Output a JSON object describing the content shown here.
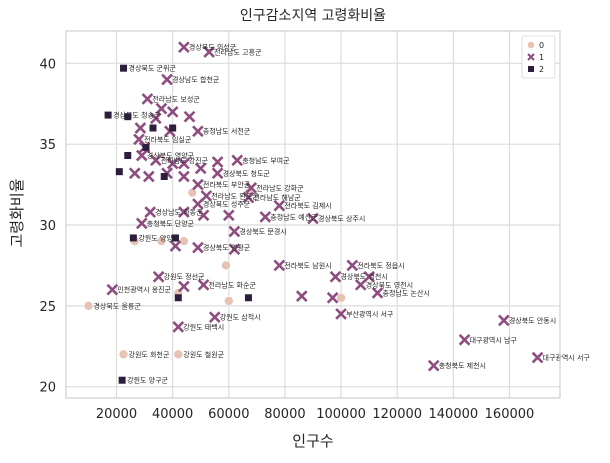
{
  "chart_data": {
    "type": "scatter",
    "title": "인구감소지역 고령화비율",
    "xlabel": "인구수",
    "ylabel": "고령화비율",
    "xlim": [
      2000,
      178000
    ],
    "ylim": [
      19.3,
      42
    ],
    "xticks": [
      20000,
      40000,
      60000,
      80000,
      100000,
      120000,
      140000,
      160000
    ],
    "yticks": [
      20,
      25,
      30,
      35,
      40
    ],
    "grid": true,
    "legend": {
      "position": "top-right",
      "title": "",
      "entries": [
        "0",
        "1",
        "2"
      ]
    },
    "series": [
      {
        "name": "0",
        "marker": "circle",
        "color": "#e6c3b3",
        "points": [
          {
            "x": 10000,
            "y": 25.0,
            "label": "경상북도 울릉군"
          },
          {
            "x": 22500,
            "y": 22.0,
            "label": "강원도 화천군"
          },
          {
            "x": 42000,
            "y": 22.0,
            "label": "강원도 철원군"
          },
          {
            "x": 26500,
            "y": 29.0,
            "label": ""
          },
          {
            "x": 36000,
            "y": 29.0,
            "label": ""
          },
          {
            "x": 44000,
            "y": 29.0,
            "label": ""
          },
          {
            "x": 59000,
            "y": 27.5,
            "label": ""
          },
          {
            "x": 42000,
            "y": 25.8,
            "label": ""
          },
          {
            "x": 47000,
            "y": 32.0,
            "label": ""
          },
          {
            "x": 67000,
            "y": 32.0,
            "label": ""
          },
          {
            "x": 60000,
            "y": 25.3,
            "label": ""
          },
          {
            "x": 100000,
            "y": 25.5,
            "label": ""
          }
        ]
      },
      {
        "name": "1",
        "marker": "x",
        "color": "#8e4d7f",
        "points": [
          {
            "x": 44000,
            "y": 41.0,
            "label": "경상북도 의성군"
          },
          {
            "x": 53000,
            "y": 40.7,
            "label": "전라남도 고흥군"
          },
          {
            "x": 38000,
            "y": 39.0,
            "label": "경상남도 합천군"
          },
          {
            "x": 31000,
            "y": 37.8,
            "label": "전라남도 보성군"
          },
          {
            "x": 36000,
            "y": 37.2,
            "label": ""
          },
          {
            "x": 40000,
            "y": 37.0,
            "label": ""
          },
          {
            "x": 34000,
            "y": 36.6,
            "label": ""
          },
          {
            "x": 46000,
            "y": 36.7,
            "label": ""
          },
          {
            "x": 28500,
            "y": 36.0,
            "label": ""
          },
          {
            "x": 39000,
            "y": 35.8,
            "label": ""
          },
          {
            "x": 49000,
            "y": 35.8,
            "label": "충청남도 서천군"
          },
          {
            "x": 28000,
            "y": 35.3,
            "label": "전라북도 임실군"
          },
          {
            "x": 30000,
            "y": 34.8,
            "label": ""
          },
          {
            "x": 29000,
            "y": 34.3,
            "label": "경상북도 영양군"
          },
          {
            "x": 34000,
            "y": 34.0,
            "label": "전라남도 강진군"
          },
          {
            "x": 40000,
            "y": 33.8,
            "label": ""
          },
          {
            "x": 44000,
            "y": 33.8,
            "label": ""
          },
          {
            "x": 50000,
            "y": 33.5,
            "label": ""
          },
          {
            "x": 56000,
            "y": 33.9,
            "label": ""
          },
          {
            "x": 63000,
            "y": 34.0,
            "label": "충청남도 부여군"
          },
          {
            "x": 26500,
            "y": 33.2,
            "label": ""
          },
          {
            "x": 31500,
            "y": 33.0,
            "label": ""
          },
          {
            "x": 38000,
            "y": 33.2,
            "label": ""
          },
          {
            "x": 44000,
            "y": 33.0,
            "label": ""
          },
          {
            "x": 56000,
            "y": 33.2,
            "label": "경상북도 청도군"
          },
          {
            "x": 49000,
            "y": 32.5,
            "label": "전라북도 부안군"
          },
          {
            "x": 68000,
            "y": 32.3,
            "label": "전라남도 강화군"
          },
          {
            "x": 52000,
            "y": 31.8,
            "label": "전라남도 완도군"
          },
          {
            "x": 67000,
            "y": 31.7,
            "label": "전라남도 해남군"
          },
          {
            "x": 49000,
            "y": 31.3,
            "label": "경상북도 성주군"
          },
          {
            "x": 78000,
            "y": 31.2,
            "label": "전라북도 김제시"
          },
          {
            "x": 32000,
            "y": 30.8,
            "label": "경상남도 하동군"
          },
          {
            "x": 44000,
            "y": 30.8,
            "label": ""
          },
          {
            "x": 51000,
            "y": 30.6,
            "label": ""
          },
          {
            "x": 60000,
            "y": 30.6,
            "label": ""
          },
          {
            "x": 73000,
            "y": 30.5,
            "label": "충청남도 예산군"
          },
          {
            "x": 90000,
            "y": 30.4,
            "label": "경상북도 상주시"
          },
          {
            "x": 29000,
            "y": 30.1,
            "label": "충청북도 단양군"
          },
          {
            "x": 62000,
            "y": 29.6,
            "label": "경상북도 문경시"
          },
          {
            "x": 41000,
            "y": 28.7,
            "label": ""
          },
          {
            "x": 49000,
            "y": 28.6,
            "label": "경상북도 영광군"
          },
          {
            "x": 62000,
            "y": 28.5,
            "label": ""
          },
          {
            "x": 35000,
            "y": 26.8,
            "label": "강원도 정선군"
          },
          {
            "x": 78000,
            "y": 27.5,
            "label": "전라북도 남원시"
          },
          {
            "x": 98000,
            "y": 26.8,
            "label": "경상북도 영천시"
          },
          {
            "x": 104000,
            "y": 27.5,
            "label": "전라북도 정읍시"
          },
          {
            "x": 107000,
            "y": 26.3,
            "label": "경상북도 영천시"
          },
          {
            "x": 110000,
            "y": 26.8,
            "label": ""
          },
          {
            "x": 113000,
            "y": 25.8,
            "label": "충청남도 논산시"
          },
          {
            "x": 18500,
            "y": 26.0,
            "label": "인천광역시 옹진군"
          },
          {
            "x": 51000,
            "y": 26.3,
            "label": "전라남도 화순군"
          },
          {
            "x": 44000,
            "y": 26.2,
            "label": ""
          },
          {
            "x": 86000,
            "y": 25.6,
            "label": ""
          },
          {
            "x": 97000,
            "y": 25.5,
            "label": ""
          },
          {
            "x": 55000,
            "y": 24.3,
            "label": "강원도 삼척시"
          },
          {
            "x": 42000,
            "y": 23.7,
            "label": "강원도 태백시"
          },
          {
            "x": 100000,
            "y": 24.5,
            "label": "부산광역시 서구"
          },
          {
            "x": 158000,
            "y": 24.1,
            "label": "경상북도 안동시"
          },
          {
            "x": 144000,
            "y": 22.9,
            "label": "대구광역시 남구"
          },
          {
            "x": 170000,
            "y": 21.8,
            "label": "대구광역시 서구"
          },
          {
            "x": 133000,
            "y": 21.3,
            "label": "충청북도 제천시"
          }
        ]
      },
      {
        "name": "2",
        "marker": "square",
        "color": "#2d1e3e",
        "points": [
          {
            "x": 22500,
            "y": 39.7,
            "label": "경상북도 군위군"
          },
          {
            "x": 17000,
            "y": 36.8,
            "label": "경상북도 청송군"
          },
          {
            "x": 24000,
            "y": 36.7,
            "label": ""
          },
          {
            "x": 33000,
            "y": 36.0,
            "label": ""
          },
          {
            "x": 40000,
            "y": 36.0,
            "label": ""
          },
          {
            "x": 30500,
            "y": 34.8,
            "label": ""
          },
          {
            "x": 24000,
            "y": 34.3,
            "label": ""
          },
          {
            "x": 21000,
            "y": 33.3,
            "label": ""
          },
          {
            "x": 37000,
            "y": 33.0,
            "label": ""
          },
          {
            "x": 26000,
            "y": 29.2,
            "label": "강원도 양양군"
          },
          {
            "x": 41000,
            "y": 29.2,
            "label": ""
          },
          {
            "x": 42000,
            "y": 25.5,
            "label": ""
          },
          {
            "x": 67000,
            "y": 25.5,
            "label": ""
          },
          {
            "x": 22000,
            "y": 20.4,
            "label": "강원도 양구군"
          }
        ]
      }
    ]
  }
}
